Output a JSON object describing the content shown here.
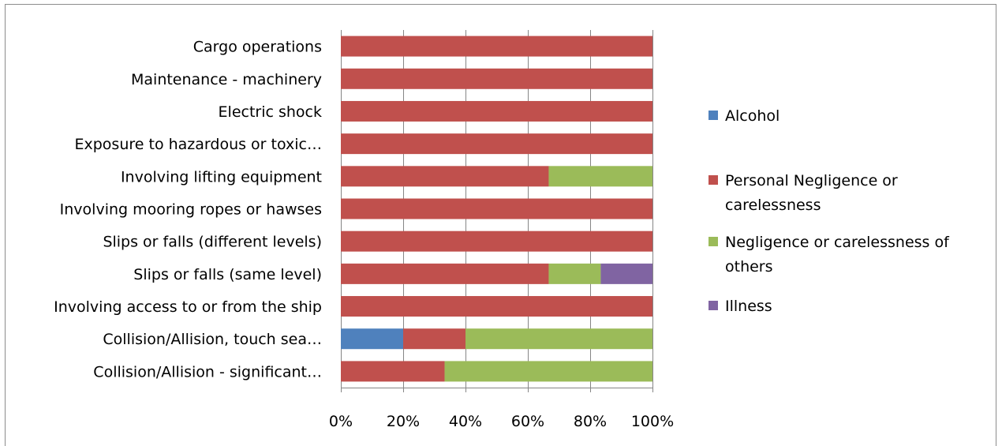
{
  "chart_data": {
    "type": "bar",
    "orientation": "horizontal",
    "stacked": "percent",
    "categories": [
      "Cargo operations",
      "Maintenance - machinery",
      "Electric shock",
      "Exposure to hazardous or toxic…",
      "Involving lifting equipment",
      "Involving mooring ropes or hawses",
      "Slips or falls (different levels)",
      "Slips or falls (same level)",
      "Involving access to or from the ship",
      "Collision/Allision, touch sea…",
      "Collision/Allision - significant…"
    ],
    "series": [
      {
        "name": "Alcohol",
        "color": "#4f81bd",
        "values": [
          0,
          0,
          0,
          0,
          0,
          0,
          0,
          0,
          0,
          20,
          0
        ]
      },
      {
        "name": "Personal Negligence or carelessness",
        "legend_lines": [
          "Personal Negligence or",
          "carelessness"
        ],
        "color": "#c0504d",
        "values": [
          100,
          100,
          100,
          100,
          66.7,
          100,
          100,
          66.7,
          100,
          20,
          33.3
        ]
      },
      {
        "name": "Negligence or carelessness of others",
        "legend_lines": [
          "Negligence or carelessness of",
          "others"
        ],
        "color": "#9bbb59",
        "values": [
          0,
          0,
          0,
          0,
          33.3,
          0,
          0,
          16.7,
          0,
          60,
          66.7
        ]
      },
      {
        "name": "Illness",
        "color": "#8064a2",
        "values": [
          0,
          0,
          0,
          0,
          0,
          0,
          0,
          16.6,
          0,
          0,
          0
        ]
      }
    ],
    "x_ticks": [
      "0%",
      "20%",
      "40%",
      "60%",
      "80%",
      "100%"
    ],
    "xlim": [
      0,
      100
    ],
    "grid": true,
    "legend_position": "right"
  }
}
